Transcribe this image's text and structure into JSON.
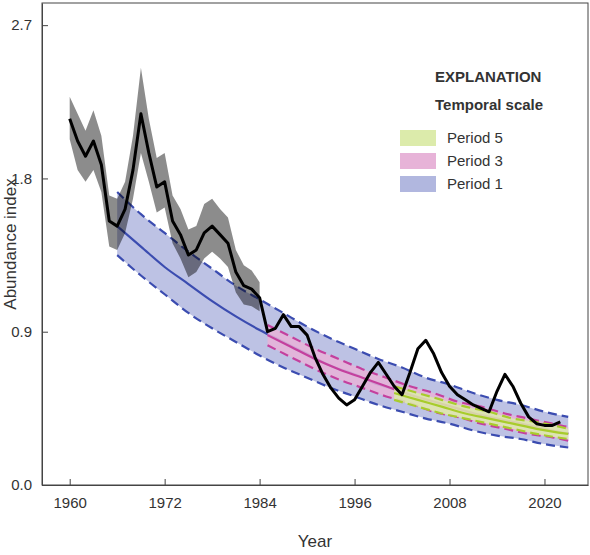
{
  "chart_data": {
    "type": "line",
    "x_label": "Year",
    "y_label": "Abundance index",
    "legend": "upper right",
    "legend_title": "EXPLANATION",
    "legend_subtitle": "Temporal scale",
    "xlim": [
      1956.5,
      2025.5
    ],
    "xticks": [
      1960,
      1972,
      1984,
      1996,
      2008,
      2020
    ],
    "ylim": [
      0,
      2.83
    ],
    "yticks": [
      {
        "value": 0,
        "label": "0.0"
      },
      0.9,
      1.8,
      2.7
    ],
    "series": [
      {
        "type": "line",
        "color": "#000000",
        "x": [
          1960,
          1961,
          1962,
          1963,
          1964,
          1965,
          1966,
          1967,
          1968,
          1969,
          1970,
          1971,
          1972,
          1973,
          1974,
          1975,
          1976,
          1977,
          1978,
          1979,
          1980,
          1981,
          1982,
          1983,
          1984,
          1985,
          1986,
          1987,
          1988,
          1989,
          1990,
          1991,
          1992,
          1993,
          1994,
          1995,
          1996,
          1997,
          1998,
          1999,
          2000,
          2001,
          2002,
          2003,
          2004,
          2005,
          2006,
          2007,
          2008,
          2009,
          2010,
          2011,
          2012,
          2013,
          2014,
          2015,
          2016,
          2017,
          2018,
          2019,
          2020,
          2021,
          2022
        ],
        "values": [
          2.15,
          2.02,
          1.93,
          2.02,
          1.88,
          1.55,
          1.52,
          1.62,
          1.85,
          2.18,
          1.95,
          1.75,
          1.78,
          1.55,
          1.47,
          1.35,
          1.38,
          1.48,
          1.52,
          1.47,
          1.42,
          1.25,
          1.17,
          1.15,
          1.1,
          0.9,
          0.92,
          1.0,
          0.93,
          0.93,
          0.88,
          0.75,
          0.65,
          0.57,
          0.51,
          0.47,
          0.5,
          0.58,
          0.66,
          0.72,
          0.65,
          0.58,
          0.53,
          0.66,
          0.8,
          0.85,
          0.77,
          0.66,
          0.58,
          0.53,
          0.5,
          0.47,
          0.45,
          0.43,
          0.55,
          0.65,
          0.58,
          0.48,
          0.4,
          0.36,
          0.35,
          0.35,
          0.37
        ],
        "lower": [
          2.03,
          1.85,
          1.78,
          1.85,
          1.72,
          1.4,
          1.38,
          1.48,
          1.68,
          1.95,
          1.78,
          1.6,
          1.63,
          1.42,
          1.33,
          1.22,
          1.25,
          1.33,
          1.37,
          1.33,
          1.28,
          1.13,
          1.06,
          1.05,
          1.02,
          null,
          null,
          null,
          null,
          null,
          null,
          null,
          null,
          null,
          null,
          null,
          null,
          null,
          null,
          null,
          null,
          null,
          null,
          null,
          null,
          null,
          null,
          null,
          null,
          null,
          null,
          null,
          null,
          null,
          null,
          null,
          null,
          null,
          null,
          null,
          null,
          null,
          null
        ],
        "upper": [
          2.28,
          2.18,
          2.08,
          2.2,
          2.05,
          1.7,
          1.68,
          1.78,
          2.05,
          2.45,
          2.15,
          1.92,
          1.95,
          1.7,
          1.62,
          1.5,
          1.52,
          1.65,
          1.68,
          1.62,
          1.57,
          1.38,
          1.29,
          1.26,
          1.19,
          null,
          null,
          null,
          null,
          null,
          null,
          null,
          null,
          null,
          null,
          null,
          null,
          null,
          null,
          null,
          null,
          null,
          null,
          null,
          null,
          null,
          null,
          null,
          null,
          null,
          null,
          null,
          null,
          null,
          null,
          null,
          null,
          null,
          null,
          null,
          null,
          null,
          null
        ]
      },
      {
        "type": "band",
        "name": "Period 5",
        "color": "#a8cc2c",
        "x": [
          2001,
          2004,
          2007,
          2010,
          2013,
          2016,
          2019,
          2023
        ],
        "values": [
          0.54,
          0.5,
          0.46,
          0.42,
          0.39,
          0.36,
          0.33,
          0.3
        ],
        "lower": [
          0.5,
          0.46,
          0.42,
          0.39,
          0.36,
          0.33,
          0.3,
          0.27
        ],
        "upper": [
          0.58,
          0.54,
          0.5,
          0.46,
          0.43,
          0.39,
          0.37,
          0.33
        ]
      },
      {
        "type": "band",
        "name": "Period 3",
        "color": "#c4409e",
        "x": [
          1985,
          1988,
          1991,
          1994,
          1997,
          2000,
          2003,
          2006,
          2009,
          2012,
          2015,
          2018,
          2021,
          2023
        ],
        "values": [
          0.88,
          0.81,
          0.74,
          0.68,
          0.63,
          0.58,
          0.53,
          0.49,
          0.45,
          0.41,
          0.38,
          0.35,
          0.32,
          0.3
        ],
        "lower": [
          0.82,
          0.75,
          0.68,
          0.62,
          0.57,
          0.52,
          0.48,
          0.43,
          0.4,
          0.36,
          0.33,
          0.3,
          0.28,
          0.26
        ],
        "upper": [
          0.94,
          0.87,
          0.8,
          0.74,
          0.68,
          0.63,
          0.58,
          0.54,
          0.49,
          0.46,
          0.42,
          0.39,
          0.36,
          0.34
        ]
      },
      {
        "type": "band",
        "name": "Period 1",
        "color": "#3b4cb0",
        "x": [
          1966,
          1969,
          1972,
          1975,
          1978,
          1981,
          1984,
          1987,
          1990,
          1993,
          1996,
          1999,
          2002,
          2005,
          2008,
          2011,
          2014,
          2017,
          2020,
          2023
        ],
        "values": [
          1.52,
          1.4,
          1.28,
          1.18,
          1.08,
          0.99,
          0.91,
          0.84,
          0.77,
          0.7,
          0.65,
          0.59,
          0.55,
          0.5,
          0.46,
          0.42,
          0.39,
          0.36,
          0.33,
          0.3
        ],
        "lower": [
          1.35,
          1.23,
          1.12,
          1.01,
          0.92,
          0.84,
          0.76,
          0.69,
          0.63,
          0.57,
          0.52,
          0.47,
          0.43,
          0.39,
          0.36,
          0.32,
          0.29,
          0.27,
          0.24,
          0.22
        ],
        "upper": [
          1.72,
          1.59,
          1.48,
          1.37,
          1.27,
          1.17,
          1.09,
          1.01,
          0.93,
          0.86,
          0.8,
          0.74,
          0.69,
          0.63,
          0.59,
          0.54,
          0.5,
          0.47,
          0.43,
          0.4
        ]
      }
    ]
  }
}
